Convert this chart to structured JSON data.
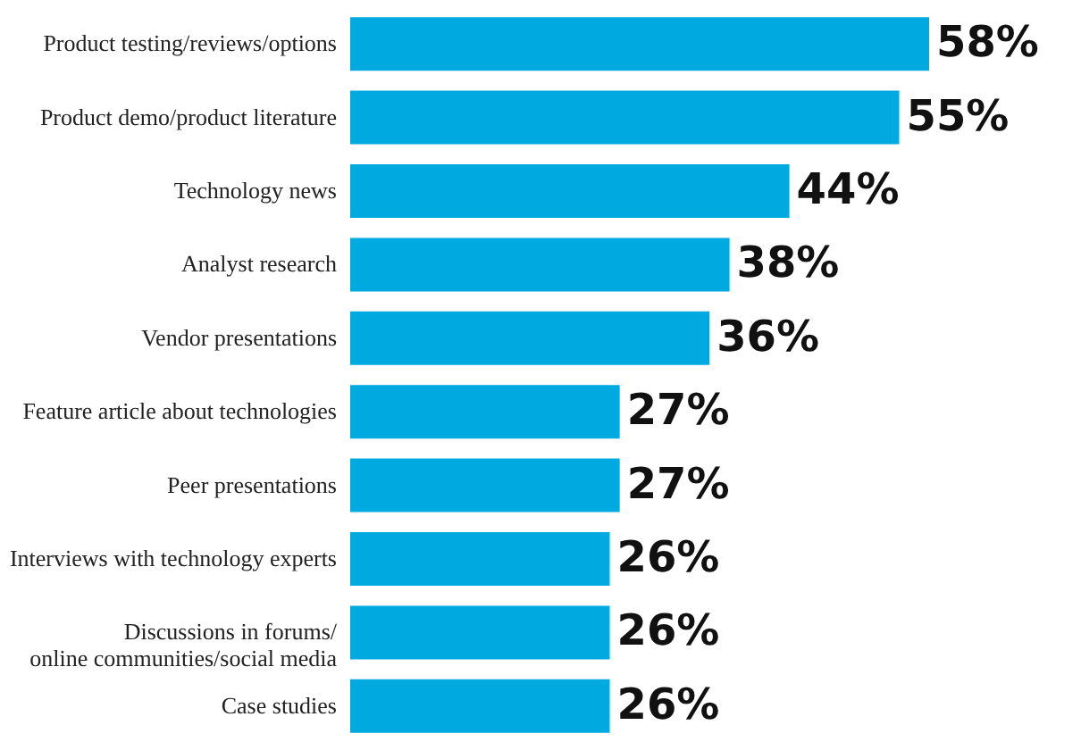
{
  "chart_data": {
    "type": "bar",
    "orientation": "horizontal",
    "categories": [
      "Product testing/reviews/options",
      "Product demo/product literature",
      "Technology news",
      "Analyst research",
      "Vendor presentations",
      "Feature article about technologies",
      "Peer presentations",
      "Interviews with technology experts",
      "Discussions in forums/\nonline communities/social media",
      "Case studies"
    ],
    "values": [
      58,
      55,
      44,
      38,
      36,
      27,
      27,
      26,
      26,
      26
    ],
    "value_labels": [
      "58%",
      "55%",
      "44%",
      "38%",
      "36%",
      "27%",
      "27%",
      "26%",
      "26%",
      "26%"
    ],
    "color": "#00a9e0"
  }
}
